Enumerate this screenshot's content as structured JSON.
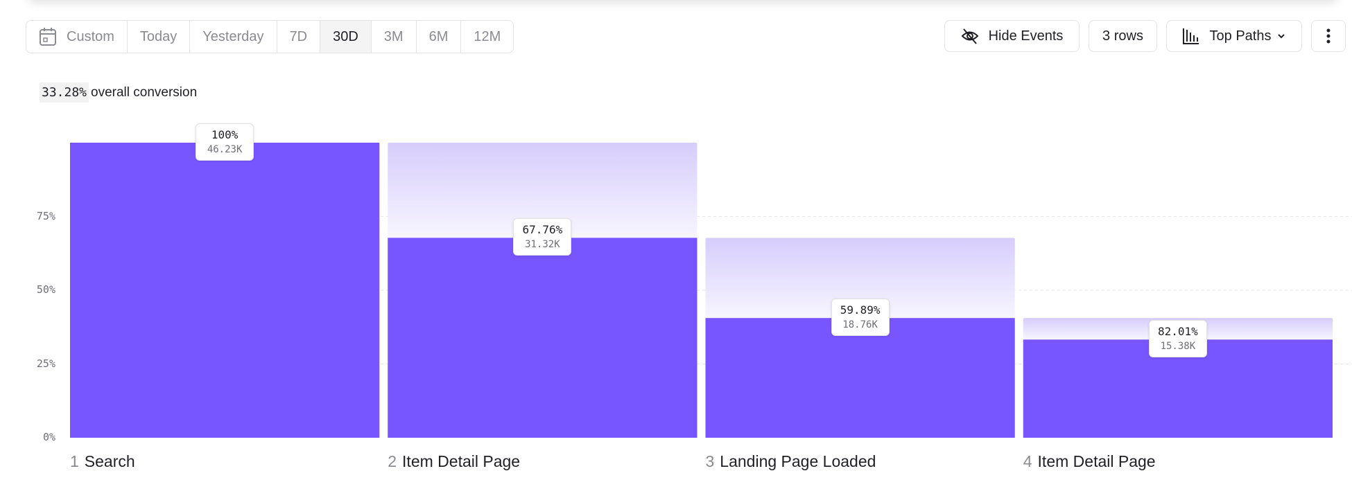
{
  "toolbar": {
    "ranges": [
      {
        "label": "Custom",
        "icon": "calendar-icon"
      },
      {
        "label": "Today"
      },
      {
        "label": "Yesterday"
      },
      {
        "label": "7D"
      },
      {
        "label": "30D",
        "active": true
      },
      {
        "label": "3M"
      },
      {
        "label": "6M"
      },
      {
        "label": "12M"
      }
    ],
    "hide_events": "Hide Events",
    "rows": "3 rows",
    "view": "Top Paths"
  },
  "summary": {
    "value": "33.28%",
    "label": "overall conversion"
  },
  "colors": {
    "bar": "#7856FF",
    "ghost": "#D6CDFC"
  },
  "chart_data": {
    "type": "bar",
    "categories": [
      "Search",
      "Item Detail Page",
      "Landing Page Loaded",
      "Item Detail Page"
    ],
    "step_numbers": [
      "1",
      "2",
      "3",
      "4"
    ],
    "values": [
      100,
      67.76,
      40.58,
      33.28
    ],
    "previous_values": [
      100,
      100,
      67.76,
      40.58
    ],
    "step_conversion_labels": [
      "100%",
      "67.76%",
      "59.89%",
      "82.01%"
    ],
    "count_labels": [
      "46.23K",
      "31.32K",
      "18.76K",
      "15.38K"
    ],
    "yticks": [
      "0%",
      "25%",
      "50%",
      "75%"
    ],
    "ylim": [
      0,
      100
    ],
    "grid": true
  }
}
